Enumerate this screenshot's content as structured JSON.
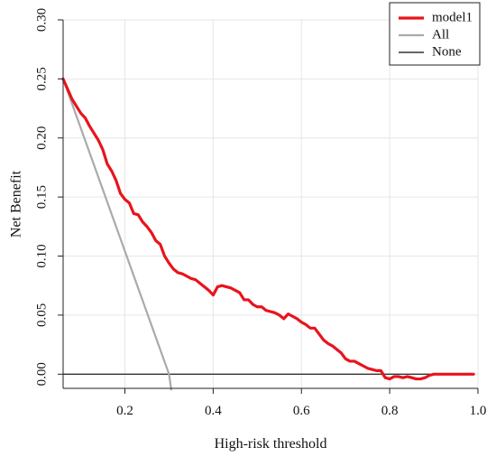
{
  "chart_data": {
    "type": "line",
    "title": "",
    "xlabel": "High-risk threshold",
    "ylabel": "Net Benefit",
    "xlim": [
      0.06,
      1.0
    ],
    "ylim": [
      -0.012,
      0.3
    ],
    "x_ticks": [
      0.2,
      0.4,
      0.6,
      0.8,
      1.0
    ],
    "x_tick_labels": [
      "0.2",
      "0.4",
      "0.6",
      "0.8",
      "1.0"
    ],
    "y_ticks": [
      0.0,
      0.05,
      0.1,
      0.15,
      0.2,
      0.25,
      0.3
    ],
    "y_tick_labels": [
      "0.00",
      "0.05",
      "0.10",
      "0.15",
      "0.20",
      "0.25",
      "0.30"
    ],
    "grid": true,
    "legend": {
      "position": "top-right",
      "entries": [
        "model1",
        "All",
        "None"
      ]
    },
    "series": [
      {
        "name": "model1",
        "color": "#e8141c",
        "x": [
          0.06,
          0.08,
          0.1,
          0.11,
          0.12,
          0.14,
          0.15,
          0.16,
          0.17,
          0.18,
          0.19,
          0.2,
          0.21,
          0.22,
          0.23,
          0.24,
          0.25,
          0.26,
          0.27,
          0.28,
          0.29,
          0.3,
          0.31,
          0.32,
          0.33,
          0.34,
          0.35,
          0.36,
          0.37,
          0.38,
          0.39,
          0.4,
          0.41,
          0.42,
          0.43,
          0.44,
          0.45,
          0.46,
          0.47,
          0.48,
          0.49,
          0.5,
          0.51,
          0.52,
          0.53,
          0.54,
          0.55,
          0.56,
          0.57,
          0.58,
          0.59,
          0.6,
          0.61,
          0.62,
          0.63,
          0.64,
          0.65,
          0.66,
          0.67,
          0.68,
          0.69,
          0.7,
          0.71,
          0.72,
          0.73,
          0.74,
          0.75,
          0.76,
          0.77,
          0.78,
          0.79,
          0.8,
          0.81,
          0.82,
          0.83,
          0.84,
          0.85,
          0.86,
          0.87,
          0.88,
          0.89,
          0.9,
          0.92,
          0.95,
          0.98,
          0.99
        ],
        "y": [
          0.25,
          0.233,
          0.221,
          0.217,
          0.21,
          0.198,
          0.19,
          0.178,
          0.172,
          0.164,
          0.153,
          0.148,
          0.145,
          0.136,
          0.135,
          0.129,
          0.125,
          0.12,
          0.113,
          0.11,
          0.1,
          0.094,
          0.089,
          0.086,
          0.085,
          0.083,
          0.081,
          0.08,
          0.077,
          0.074,
          0.071,
          0.067,
          0.074,
          0.075,
          0.074,
          0.073,
          0.071,
          0.069,
          0.063,
          0.063,
          0.059,
          0.057,
          0.057,
          0.054,
          0.053,
          0.052,
          0.05,
          0.047,
          0.051,
          0.049,
          0.047,
          0.044,
          0.042,
          0.039,
          0.039,
          0.034,
          0.029,
          0.026,
          0.024,
          0.021,
          0.018,
          0.013,
          0.011,
          0.011,
          0.009,
          0.007,
          0.005,
          0.004,
          0.003,
          0.003,
          -0.003,
          -0.004,
          -0.002,
          -0.002,
          -0.003,
          -0.002,
          -0.003,
          -0.004,
          -0.004,
          -0.003,
          -0.001,
          0.0,
          0.0,
          0.0,
          0.0,
          0.0
        ]
      },
      {
        "name": "All",
        "color": "#aaaaaa",
        "x": [
          0.06,
          0.3,
          0.305
        ],
        "y": [
          0.25,
          0.0,
          -0.013
        ]
      },
      {
        "name": "None",
        "color": "#333333",
        "x": [
          0.06,
          0.99
        ],
        "y": [
          0.0,
          0.0
        ]
      }
    ]
  }
}
